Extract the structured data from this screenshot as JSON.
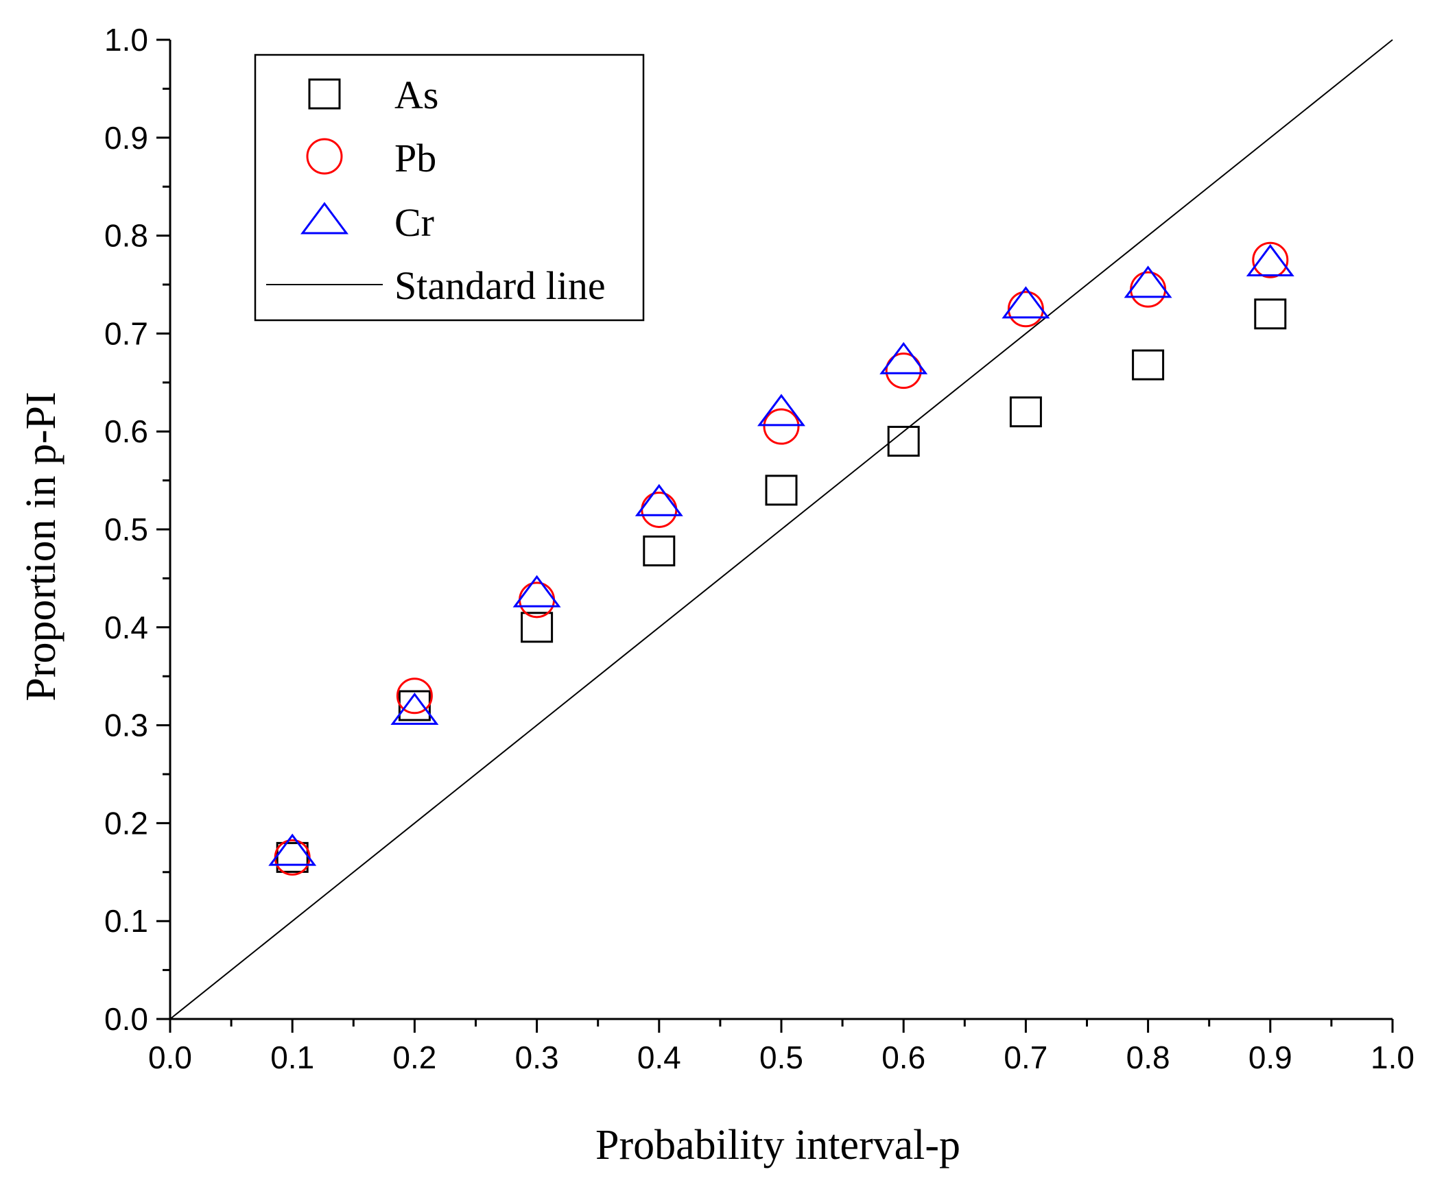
{
  "chart_data": {
    "type": "scatter",
    "title": "",
    "xlabel": "Probability interval-p",
    "ylabel": "Proportion in p-PI",
    "xlim": [
      0.0,
      1.0
    ],
    "ylim": [
      0.0,
      1.0
    ],
    "x_ticks": [
      "0.0",
      "0.1",
      "0.2",
      "0.3",
      "0.4",
      "0.5",
      "0.6",
      "0.7",
      "0.8",
      "0.9",
      "1.0"
    ],
    "y_ticks": [
      "0.0",
      "0.1",
      "0.2",
      "0.3",
      "0.4",
      "0.5",
      "0.6",
      "0.7",
      "0.8",
      "0.9",
      "1.0"
    ],
    "grid": false,
    "legend_position": "top-left",
    "x": [
      0.1,
      0.2,
      0.3,
      0.4,
      0.5,
      0.6,
      0.7,
      0.8,
      0.9
    ],
    "series": [
      {
        "name": "As",
        "marker": "square",
        "color": "#000000",
        "values": [
          0.165,
          0.32,
          0.4,
          0.478,
          0.54,
          0.59,
          0.62,
          0.668,
          0.72
        ]
      },
      {
        "name": "Pb",
        "marker": "circle",
        "color": "#ff0000",
        "values": [
          0.165,
          0.33,
          0.428,
          0.52,
          0.605,
          0.662,
          0.725,
          0.745,
          0.775
        ]
      },
      {
        "name": "Cr",
        "marker": "triangle",
        "color": "#0000ff",
        "values": [
          0.168,
          0.312,
          0.432,
          0.525,
          0.617,
          0.67,
          0.727,
          0.748,
          0.77
        ]
      }
    ],
    "reference_line": {
      "name": "Standard line",
      "color": "#000000",
      "x": [
        0.0,
        1.0
      ],
      "y": [
        0.0,
        1.0
      ]
    }
  }
}
